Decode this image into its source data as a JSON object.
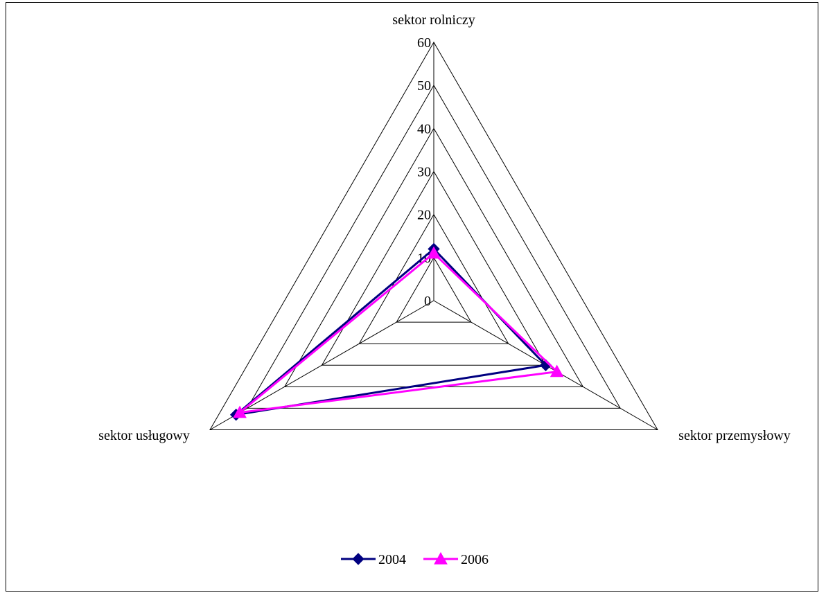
{
  "chart_data": {
    "type": "radar",
    "categories": [
      "sektor rolniczy",
      "sektor przemysłowy",
      "sektor usługowy"
    ],
    "rmin": 0,
    "rmax": 60,
    "ticks": [
      "0",
      "10",
      "20",
      "30",
      "40",
      "50",
      "60"
    ],
    "tick_values": [
      0,
      10,
      20,
      30,
      40,
      50,
      60
    ],
    "grid": true,
    "legend_position": "bottom",
    "series": [
      {
        "name": "2004",
        "values": [
          12,
          30,
          53
        ],
        "color": "#000080",
        "marker": "diamond"
      },
      {
        "name": "2006",
        "values": [
          11,
          33,
          52
        ],
        "color": "#FF00FF",
        "marker": "triangle"
      }
    ]
  }
}
